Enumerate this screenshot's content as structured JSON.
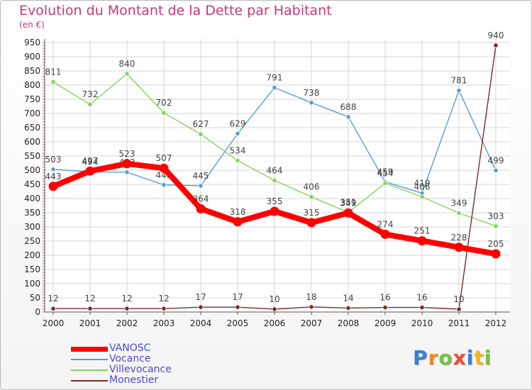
{
  "title": "Evolution du Montant de la Dette par Habitant",
  "subtitle": "(en €)",
  "logo": {
    "letters": [
      "P",
      "r",
      "o",
      "x",
      "i",
      "t",
      "i"
    ],
    "colors": [
      "#3a7fd6",
      "#f08a24",
      "#7ac143",
      "#e94b35",
      "#3a7fd6",
      "#f0b424",
      "#7ac143"
    ]
  },
  "chart_data": {
    "type": "line",
    "title": "Evolution du Montant de la Dette par Habitant",
    "subtitle": "(en €)",
    "x": [
      "2000",
      "2001",
      "2002",
      "2003",
      "2004",
      "2005",
      "2006",
      "2007",
      "2008",
      "2009",
      "2010",
      "2011",
      "2012"
    ],
    "ylim": [
      0,
      950
    ],
    "yticks": [
      0,
      50,
      100,
      150,
      200,
      250,
      300,
      350,
      400,
      450,
      500,
      550,
      600,
      650,
      700,
      750,
      800,
      850,
      900,
      950
    ],
    "grid": true,
    "legend_position": "bottom-left",
    "series": [
      {
        "name": "VANOSC",
        "color": "#ff0000",
        "values": [
          443,
          497,
          523,
          507,
          364,
          318,
          355,
          315,
          349,
          274,
          251,
          228,
          205
        ],
        "labels": [
          "443",
          "497",
          "523",
          "507",
          "364",
          "318",
          "355",
          "315",
          "349",
          "274",
          "251",
          "228",
          "205"
        ]
      },
      {
        "name": "Vocance",
        "color": "#5b9bd5",
        "values": [
          503,
          494,
          493,
          448,
          445,
          629,
          791,
          738,
          688,
          459,
          419,
          781,
          499
        ],
        "labels": [
          "503",
          "494",
          "493",
          "448",
          "445",
          "629",
          "791",
          "738",
          "688",
          "459",
          "419",
          "781",
          "499"
        ]
      },
      {
        "name": "Villevocance",
        "color": "#82d35a",
        "values": [
          811,
          732,
          840,
          702,
          627,
          534,
          464,
          406,
          351,
          454,
          406,
          349,
          303
        ],
        "labels": [
          "811",
          "732",
          "840",
          "702",
          "627",
          "534",
          "464",
          "406",
          "351",
          "454",
          "406",
          "349",
          "303"
        ]
      },
      {
        "name": "Monestier",
        "color": "#7a2a2a",
        "values": [
          12,
          12,
          12,
          12,
          17,
          17,
          10,
          18,
          14,
          16,
          16,
          10,
          940
        ],
        "labels": [
          "12",
          "12",
          "12",
          "12",
          "17",
          "17",
          "10",
          "18",
          "14",
          "16",
          "16",
          "10",
          "940"
        ]
      }
    ]
  }
}
